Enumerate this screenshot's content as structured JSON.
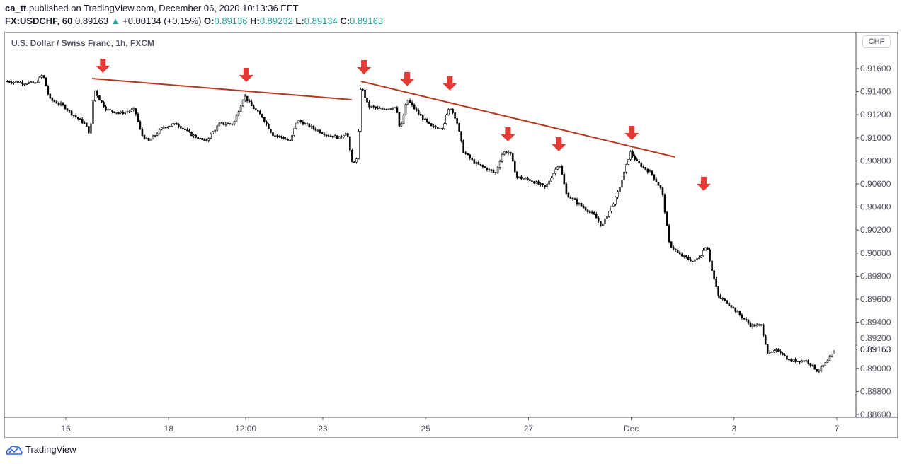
{
  "header": {
    "user": "ca_tt",
    "published": " published on TradingView.com, December 06, 2020 10:13:36 EET",
    "symbol": "FX:USDCHF, 60",
    "last": "0.89163",
    "change": "+0.00134 (+0.15%)",
    "o_label": "O:",
    "o": "0.89136",
    "h_label": "H:",
    "h": "0.89232",
    "l_label": "L:",
    "l": "0.89134",
    "c_label": "C:",
    "c": "0.89163"
  },
  "chart_title": "U.S. Dollar / Swiss Franc, 1h, FXCM",
  "currency": "CHF",
  "footer": {
    "brand": "TradingView"
  },
  "colors": {
    "candle": "#000000",
    "trend": "#b5391f",
    "arrow": "#e53935",
    "up": "#26a69a"
  },
  "chart_data": {
    "type": "candlestick",
    "x_units": "trading days since Nov 16 00:00",
    "x_ticks": [
      {
        "t": 0,
        "label": "16"
      },
      {
        "t": 2,
        "label": "18"
      },
      {
        "t": 3.5,
        "label": "12:00"
      },
      {
        "t": 5,
        "label": "23"
      },
      {
        "t": 7,
        "label": "25"
      },
      {
        "t": 9,
        "label": "27"
      },
      {
        "t": 11,
        "label": "Dec"
      },
      {
        "t": 13,
        "label": "3"
      },
      {
        "t": 15,
        "label": "7"
      }
    ],
    "y_ticks": [
      "0.91600",
      "0.91400",
      "0.91200",
      "0.91000",
      "0.90800",
      "0.90600",
      "0.90400",
      "0.90200",
      "0.90000",
      "0.89800",
      "0.89600",
      "0.89400",
      "0.89200",
      "0.89000",
      "0.88800",
      "0.88600"
    ],
    "ylim": [
      0.886,
      0.916
    ],
    "last_price_label": "0.89163",
    "path": [
      [
        -1.18,
        0.9149
      ],
      [
        -0.59,
        0.91471
      ],
      [
        -0.45,
        0.91551
      ],
      [
        -0.32,
        0.91336
      ],
      [
        -0.04,
        0.91275
      ],
      [
        0.1,
        0.91213
      ],
      [
        0.37,
        0.91121
      ],
      [
        0.47,
        0.91029
      ],
      [
        0.55,
        0.91428
      ],
      [
        0.65,
        0.91336
      ],
      [
        0.79,
        0.91244
      ],
      [
        1.06,
        0.91213
      ],
      [
        1.34,
        0.91244
      ],
      [
        1.47,
        0.91029
      ],
      [
        1.61,
        0.90968
      ],
      [
        1.89,
        0.91091
      ],
      [
        2.16,
        0.91121
      ],
      [
        2.44,
        0.91029
      ],
      [
        2.71,
        0.90968
      ],
      [
        2.99,
        0.91121
      ],
      [
        3.26,
        0.91121
      ],
      [
        3.47,
        0.91367
      ],
      [
        3.61,
        0.91275
      ],
      [
        3.82,
        0.91183
      ],
      [
        4.02,
        0.91029
      ],
      [
        4.23,
        0.90999
      ],
      [
        4.37,
        0.90968
      ],
      [
        4.5,
        0.91152
      ],
      [
        4.78,
        0.91091
      ],
      [
        5.06,
        0.91029
      ],
      [
        5.33,
        0.90999
      ],
      [
        5.47,
        0.9106
      ],
      [
        5.56,
        0.90784
      ],
      [
        5.67,
        0.90815
      ],
      [
        5.74,
        0.91459
      ],
      [
        5.88,
        0.91275
      ],
      [
        6.16,
        0.91244
      ],
      [
        6.43,
        0.91275
      ],
      [
        6.5,
        0.9106
      ],
      [
        6.64,
        0.91336
      ],
      [
        6.85,
        0.91213
      ],
      [
        7.12,
        0.91091
      ],
      [
        7.33,
        0.91091
      ],
      [
        7.47,
        0.91275
      ],
      [
        7.6,
        0.91152
      ],
      [
        7.74,
        0.90876
      ],
      [
        7.95,
        0.90784
      ],
      [
        8.22,
        0.90723
      ],
      [
        8.36,
        0.90692
      ],
      [
        8.5,
        0.90876
      ],
      [
        8.64,
        0.90876
      ],
      [
        8.77,
        0.90661
      ],
      [
        9.05,
        0.90631
      ],
      [
        9.33,
        0.90569
      ],
      [
        9.6,
        0.90784
      ],
      [
        9.74,
        0.90508
      ],
      [
        10.01,
        0.90416
      ],
      [
        10.29,
        0.90324
      ],
      [
        10.43,
        0.90232
      ],
      [
        10.56,
        0.90355
      ],
      [
        10.7,
        0.90477
      ],
      [
        10.84,
        0.90661
      ],
      [
        10.98,
        0.90876
      ],
      [
        11.12,
        0.90784
      ],
      [
        11.39,
        0.90692
      ],
      [
        11.6,
        0.90539
      ],
      [
        11.74,
        0.90078
      ],
      [
        11.94,
        0.89986
      ],
      [
        12.22,
        0.89925
      ],
      [
        12.36,
        0.89986
      ],
      [
        12.47,
        0.90078
      ],
      [
        12.56,
        0.89864
      ],
      [
        12.7,
        0.89618
      ],
      [
        12.91,
        0.89557
      ],
      [
        13.11,
        0.89465
      ],
      [
        13.32,
        0.89373
      ],
      [
        13.53,
        0.89373
      ],
      [
        13.66,
        0.89127
      ],
      [
        13.87,
        0.89158
      ],
      [
        14.08,
        0.89066
      ],
      [
        14.42,
        0.89066
      ],
      [
        14.63,
        0.88974
      ],
      [
        14.83,
        0.89066
      ],
      [
        14.97,
        0.89163
      ]
    ],
    "trendlines": [
      [
        [
          0.51,
          0.91514
        ],
        [
          5.56,
          0.9133
        ]
      ],
      [
        [
          5.74,
          0.9149
        ],
        [
          11.85,
          0.90833
        ]
      ]
    ],
    "arrows": [
      [
        0.72,
        0.91551
      ],
      [
        3.51,
        0.91471
      ],
      [
        5.8,
        0.91539
      ],
      [
        6.64,
        0.91435
      ],
      [
        7.47,
        0.91398
      ],
      [
        8.6,
        0.90956
      ],
      [
        9.59,
        0.9087
      ],
      [
        11.01,
        0.90968
      ],
      [
        12.41,
        0.90527
      ]
    ]
  }
}
